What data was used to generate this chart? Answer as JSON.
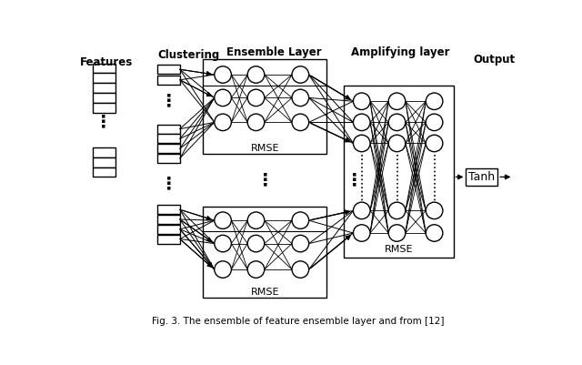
{
  "bg_color": "#ffffff",
  "labels": {
    "features": "Features",
    "clustering": "Clustering",
    "ensemble": "Ensemble Layer",
    "amplifying": "Amplifying layer",
    "output": "Output",
    "rmse": "RMSE",
    "tanh": "Tanh",
    "caption": "Fig. 3. The ensemble of feature ensemble layer and from [12]"
  }
}
